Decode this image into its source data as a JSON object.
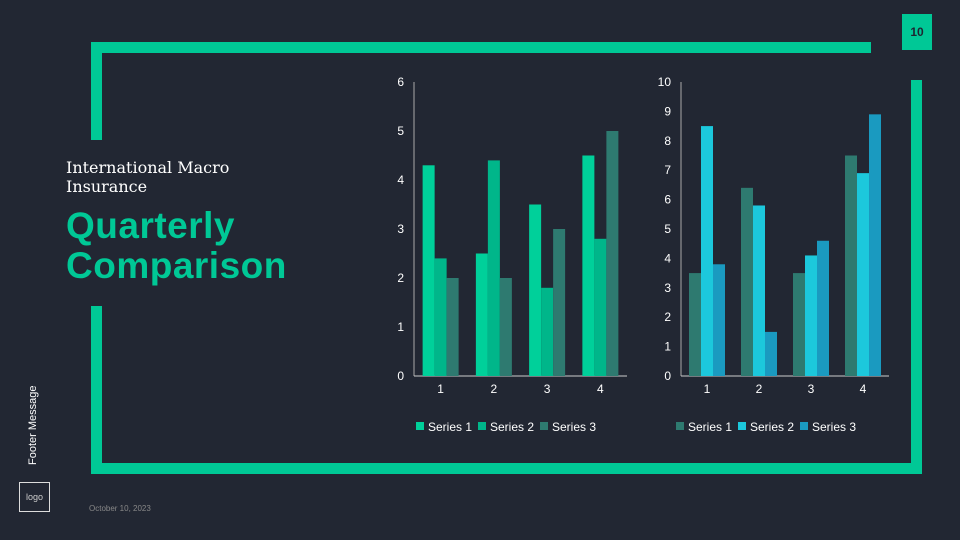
{
  "page_number": "10",
  "subtitle": "International Macro Insurance",
  "title_line1": "Quarterly",
  "title_line2": "Comparison",
  "footer": "Footer Message",
  "logo": "logo",
  "date": "October 10, 2023",
  "colors": {
    "background": "#222733",
    "accent": "#00C896"
  },
  "chart_data": [
    {
      "type": "bar",
      "categories": [
        "1",
        "2",
        "3",
        "4"
      ],
      "ylim": [
        0,
        6
      ],
      "yticks": [
        "0",
        "1",
        "2",
        "3",
        "4",
        "5",
        "6"
      ],
      "legend": "bottom",
      "series": [
        {
          "name": "Series 1",
          "color": "#00D09A",
          "values": [
            4.3,
            2.5,
            3.5,
            4.5
          ]
        },
        {
          "name": "Series 2",
          "color": "#00B68A",
          "values": [
            2.4,
            4.4,
            1.8,
            2.8
          ]
        },
        {
          "name": "Series 3",
          "color": "#2E7A70",
          "values": [
            2,
            2,
            3,
            5
          ]
        }
      ]
    },
    {
      "type": "bar",
      "categories": [
        "1",
        "2",
        "3",
        "4"
      ],
      "ylim": [
        0,
        10
      ],
      "yticks": [
        "0",
        "1",
        "2",
        "3",
        "4",
        "5",
        "6",
        "7",
        "8",
        "9",
        "10"
      ],
      "legend": "bottom",
      "series": [
        {
          "name": "Series 1",
          "color": "#2E7A70",
          "values": [
            3.5,
            6.4,
            3.5,
            7.5
          ]
        },
        {
          "name": "Series 2",
          "color": "#1CC8DC",
          "values": [
            8.5,
            5.8,
            4.1,
            6.9
          ]
        },
        {
          "name": "Series 3",
          "color": "#1A9AC0",
          "values": [
            3.8,
            1.5,
            4.6,
            8.9
          ]
        }
      ]
    }
  ]
}
